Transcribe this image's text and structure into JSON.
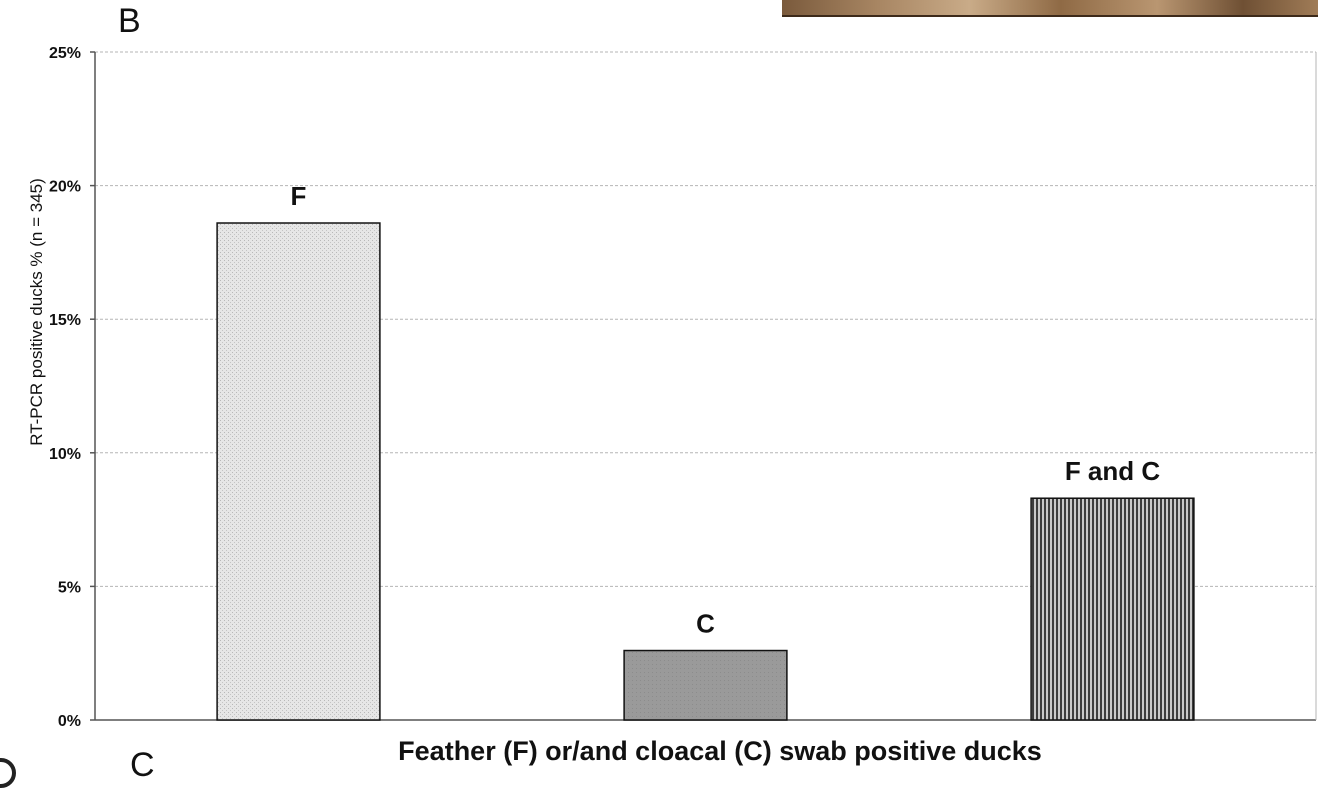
{
  "panel_labels": {
    "top": "B",
    "bottom": "C"
  },
  "chart_data": {
    "type": "bar",
    "title": "",
    "xlabel": "Feather (F) or/and cloacal (C) swab positive ducks",
    "ylabel": "RT-PCR positive ducks % (n = 345)",
    "categories": [
      "F",
      "C",
      "F and C"
    ],
    "values": [
      18.6,
      2.6,
      8.3
    ],
    "ylim": [
      0,
      25
    ],
    "yticks": [
      0,
      5,
      10,
      15,
      20,
      25
    ],
    "ytick_labels": [
      "0%",
      "5%",
      "10%",
      "15%",
      "20%",
      "25%"
    ],
    "grid": true,
    "legend": "none",
    "bar_fills": [
      "light-dotted",
      "gray-solid",
      "dark-vertical-hatch"
    ],
    "colors": {
      "bar1": "#dcdcdc",
      "bar2": "#9a9a9a",
      "bar3": "#5a5a5a",
      "grid": "#b5b5b5",
      "axis": "#555555"
    }
  }
}
